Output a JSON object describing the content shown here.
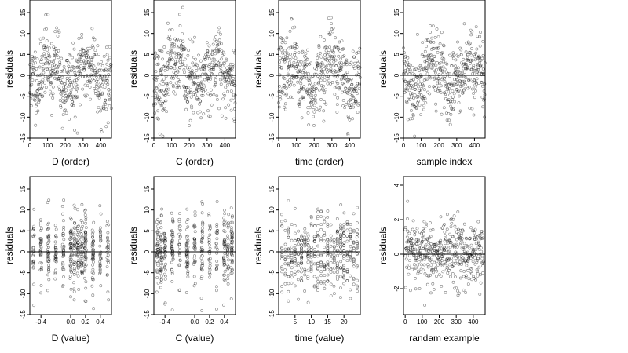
{
  "chart_data": [
    {
      "type": "scatter",
      "xlabel": "D (order)",
      "ylabel": "residuals",
      "xlim": [
        0,
        460
      ],
      "ylim": [
        -15,
        18
      ],
      "xticks": [
        0,
        100,
        200,
        300,
        400
      ],
      "yticks": [
        -15,
        -10,
        -5,
        0,
        5,
        10,
        15
      ],
      "hline": 0,
      "n": 460,
      "gen": "order",
      "seed": 11
    },
    {
      "type": "scatter",
      "xlabel": "C (order)",
      "ylabel": "residuals",
      "xlim": [
        0,
        460
      ],
      "ylim": [
        -15,
        18
      ],
      "xticks": [
        0,
        100,
        200,
        300,
        400
      ],
      "yticks": [
        -15,
        -10,
        -5,
        0,
        5,
        10,
        15
      ],
      "hline": 0,
      "n": 460,
      "gen": "order",
      "seed": 23
    },
    {
      "type": "scatter",
      "xlabel": "time (order)",
      "ylabel": "residuals",
      "xlim": [
        0,
        460
      ],
      "ylim": [
        -15,
        18
      ],
      "xticks": [
        0,
        100,
        200,
        300,
        400
      ],
      "yticks": [
        -15,
        -10,
        -5,
        0,
        5,
        10,
        15
      ],
      "hline": 0,
      "n": 460,
      "gen": "order",
      "seed": 37
    },
    {
      "type": "scatter",
      "xlabel": "sample index",
      "ylabel": "residuals",
      "xlim": [
        0,
        460
      ],
      "ylim": [
        -15,
        18
      ],
      "xticks": [
        0,
        100,
        200,
        300,
        400
      ],
      "yticks": [
        -15,
        -10,
        -5,
        0,
        5,
        10,
        15
      ],
      "hline": 0,
      "n": 460,
      "gen": "order",
      "seed": 41
    },
    {
      "type": "scatter",
      "xlabel": "D (value)",
      "ylabel": "residuals",
      "xlim": [
        -0.55,
        0.55
      ],
      "ylim": [
        -15,
        18
      ],
      "xticks": [
        -0.4,
        0.0,
        0.2,
        0.4
      ],
      "xticklabels": [
        "-0.4",
        "0.0",
        "0.2",
        "0.4"
      ],
      "yticks": [
        -15,
        -10,
        -5,
        0,
        5,
        10,
        15
      ],
      "hline": 0,
      "n": 460,
      "gen": "value",
      "seed": 53
    },
    {
      "type": "scatter",
      "xlabel": "C (value)",
      "ylabel": "residuals",
      "xlim": [
        -0.55,
        0.55
      ],
      "ylim": [
        -15,
        18
      ],
      "xticks": [
        -0.4,
        0.0,
        0.2,
        0.4
      ],
      "xticklabels": [
        "-0.4",
        "0.0",
        "0.2",
        "0.4"
      ],
      "yticks": [
        -15,
        -10,
        -5,
        0,
        5,
        10,
        15
      ],
      "hline": 0,
      "n": 460,
      "gen": "value2",
      "seed": 67
    },
    {
      "type": "scatter",
      "xlabel": "time (value)",
      "ylabel": "residuals",
      "xlim": [
        0,
        25
      ],
      "ylim": [
        -15,
        18
      ],
      "xticks": [
        5,
        10,
        15,
        20
      ],
      "yticks": [
        -15,
        -10,
        -5,
        0,
        5,
        10,
        15
      ],
      "hline": 0,
      "n": 460,
      "gen": "time",
      "seed": 79
    },
    {
      "type": "scatter",
      "xlabel": "randam example",
      "ylabel": "residuals",
      "xlim": [
        -10,
        470
      ],
      "ylim": [
        -3.5,
        4.5
      ],
      "xticks": [
        0,
        100,
        200,
        300,
        400
      ],
      "yticks": [
        -2,
        0,
        2,
        4
      ],
      "hline": 0,
      "n": 460,
      "gen": "normal",
      "seed": 97
    }
  ]
}
